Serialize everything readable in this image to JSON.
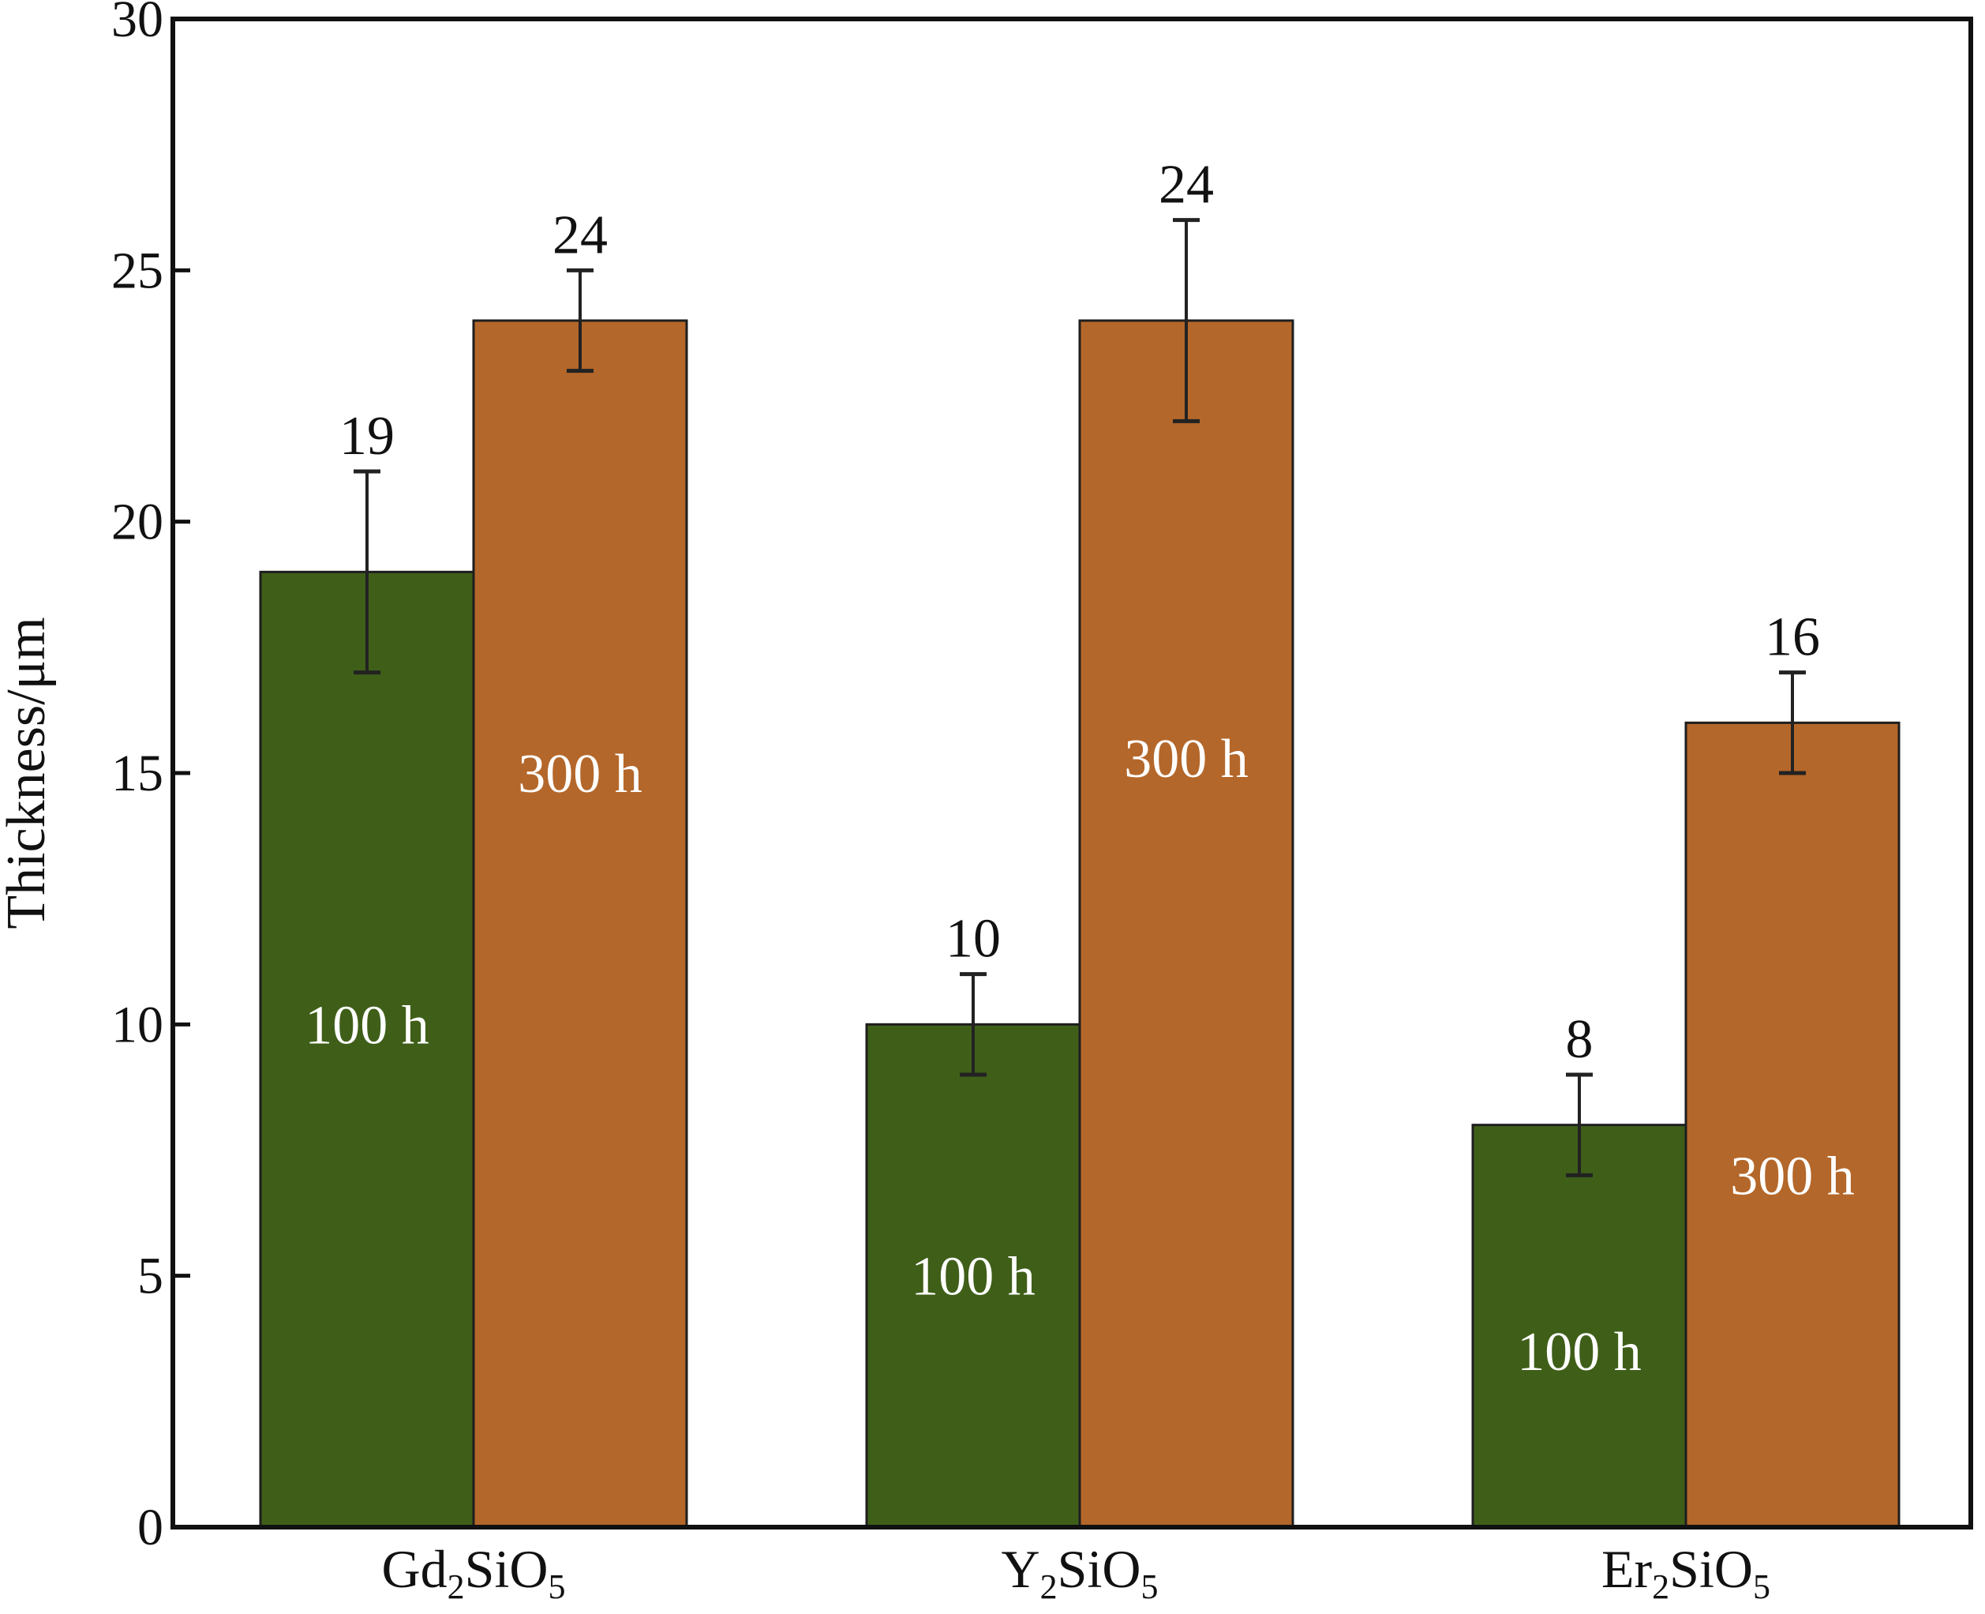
{
  "chart_data": {
    "type": "bar",
    "categories": [
      {
        "base": "Gd",
        "sub1": "2",
        "mid": "SiO",
        "sub2": "5"
      },
      {
        "base": "Y",
        "sub1": "2",
        "mid": "SiO",
        "sub2": "5"
      },
      {
        "base": "Er",
        "sub1": "2",
        "mid": "SiO",
        "sub2": "5"
      }
    ],
    "ylabel": "Thickness/μm",
    "ylim": [
      0,
      30
    ],
    "yticks": [
      0,
      5,
      10,
      15,
      20,
      25,
      30
    ],
    "grid": false,
    "legend": "none",
    "series": [
      {
        "label": "100 h",
        "color": "#3f5f19",
        "values": [
          19,
          10,
          8
        ],
        "errors": [
          2,
          1,
          1
        ],
        "value_labels": [
          "19",
          "10",
          "8"
        ],
        "label_positions": [
          10.0,
          5.0,
          3.5
        ]
      },
      {
        "label": "300 h",
        "color": "#b4672a",
        "values": [
          24,
          24,
          16
        ],
        "errors": [
          1,
          2,
          1
        ],
        "value_labels": [
          "24",
          "24",
          "16"
        ],
        "label_positions": [
          15.0,
          15.3,
          7.0
        ]
      }
    ]
  }
}
